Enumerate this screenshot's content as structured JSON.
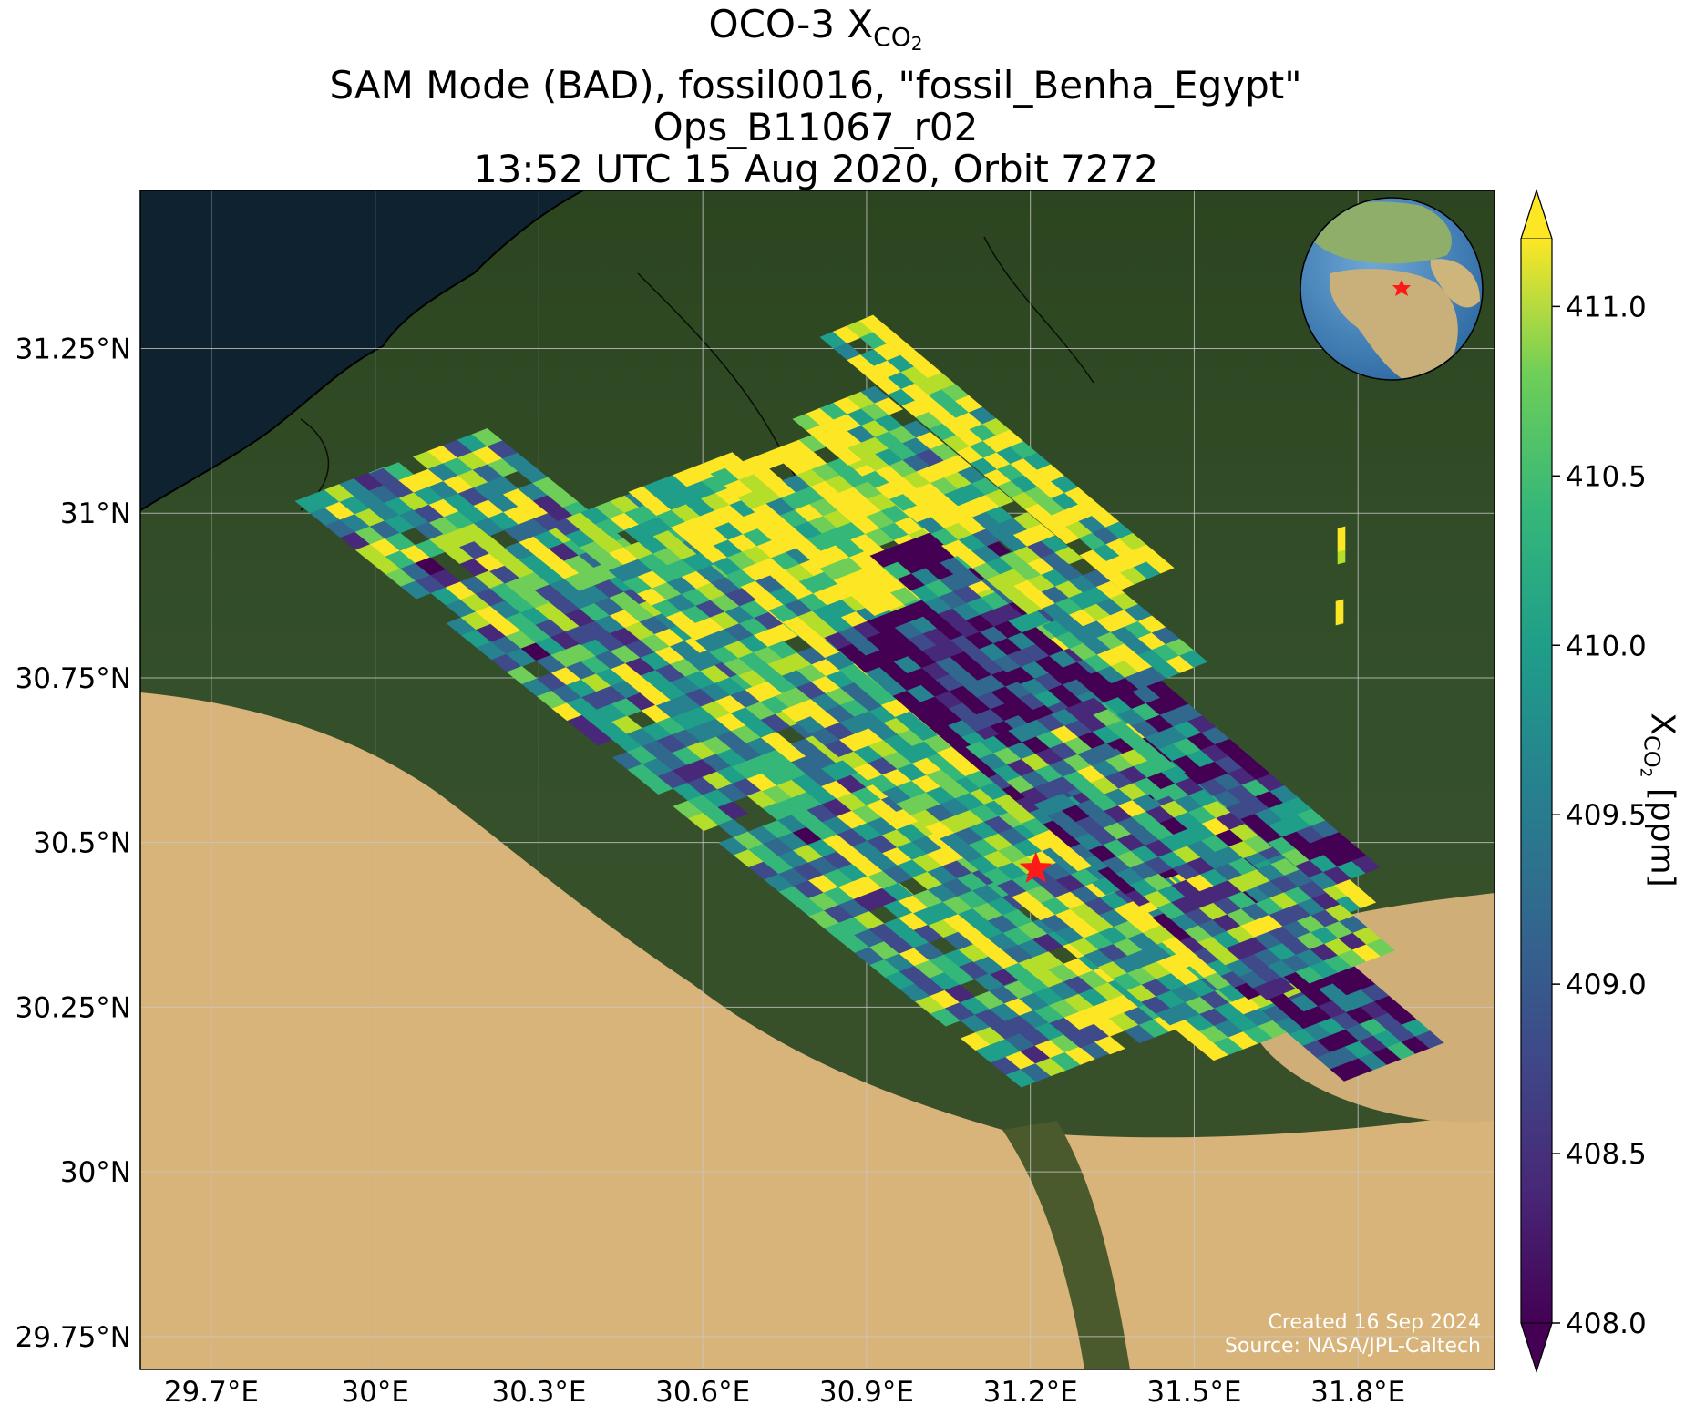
{
  "title": {
    "line1_prefix": "OCO-3 X",
    "line1_sub": "CO",
    "line1_sub2": "2",
    "line2": "SAM Mode (BAD), fossil0016, \"fossil_Benha_Egypt\"",
    "line3": "Ops_B11067_r02",
    "line4": "13:52 UTC 15 Aug 2020, Orbit 7272"
  },
  "map": {
    "lon_range": [
      29.57,
      32.05
    ],
    "lat_range": [
      29.7,
      31.49
    ],
    "lon_ticks": [
      "29.7°E",
      "30°E",
      "30.3°E",
      "30.6°E",
      "30.9°E",
      "31.2°E",
      "31.5°E",
      "31.8°E"
    ],
    "lon_tick_values": [
      29.7,
      30.0,
      30.3,
      30.6,
      30.9,
      31.2,
      31.5,
      31.8
    ],
    "lat_ticks": [
      "31.25°N",
      "31°N",
      "30.75°N",
      "30.5°N",
      "30.25°N",
      "30°N",
      "29.75°N"
    ],
    "lat_tick_values": [
      31.25,
      31.0,
      30.75,
      30.5,
      30.25,
      30.0,
      29.75
    ],
    "target_marker": {
      "lon": 31.21,
      "lat": 30.46,
      "symbol": "star",
      "color": "#ff1a1a"
    },
    "credits": [
      "Created 16 Sep 2024",
      "Source: NASA/JPL-Caltech"
    ],
    "inset_globe": {
      "content": "orthographic globe (Europe, Africa, Middle East)",
      "marker_color": "#ff1a1a"
    }
  },
  "colorbar": {
    "label_prefix": "X",
    "label_sub": "CO",
    "label_sub2": "2",
    "label_suffix": " [ppm]",
    "colormap": "viridis",
    "range": [
      408.0,
      411.2
    ],
    "extend": "both",
    "ticks": [
      "408.0",
      "408.5",
      "409.0",
      "409.5",
      "410.0",
      "410.5",
      "411.0"
    ],
    "tick_values": [
      408.0,
      408.5,
      409.0,
      409.5,
      410.0,
      410.5,
      411.0
    ]
  },
  "colors": {
    "sea": "#0e2230",
    "vegetation": "#2f4a1f",
    "desert": "#d9b47a",
    "grid": "#c8c8c8",
    "border": "#000000"
  }
}
